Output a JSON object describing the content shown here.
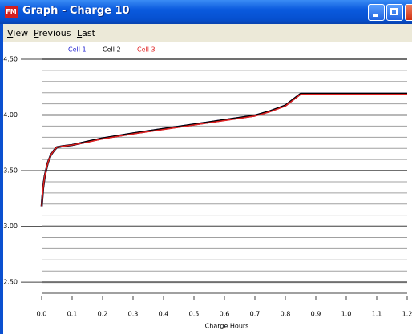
{
  "window": {
    "title": "Graph - Charge 10",
    "icon": "FM"
  },
  "menu": [
    "View",
    "Previous",
    "Last"
  ],
  "chart_data": {
    "type": "line",
    "xlabel": "Charge Hours",
    "x": [
      0,
      0.005,
      0.01,
      0.02,
      0.03,
      0.04,
      0.05,
      0.07,
      0.1,
      0.15,
      0.2,
      0.3,
      0.4,
      0.5,
      0.6,
      0.7,
      0.75,
      0.8,
      0.85,
      0.9,
      1.0,
      1.1,
      1.2
    ],
    "series": [
      {
        "name": "Cell 1",
        "color": "#2020d0",
        "values": [
          3.18,
          3.35,
          3.45,
          3.57,
          3.64,
          3.68,
          3.71,
          3.72,
          3.73,
          3.76,
          3.79,
          3.835,
          3.875,
          3.915,
          3.955,
          3.995,
          4.035,
          4.085,
          4.19,
          4.19,
          4.19,
          4.19,
          4.19
        ]
      },
      {
        "name": "Cell 2",
        "color": "#000000",
        "values": [
          3.18,
          3.35,
          3.45,
          3.57,
          3.64,
          3.68,
          3.71,
          3.72,
          3.73,
          3.76,
          3.79,
          3.835,
          3.875,
          3.915,
          3.955,
          3.995,
          4.035,
          4.085,
          4.19,
          4.19,
          4.19,
          4.19,
          4.19
        ]
      },
      {
        "name": "Cell 3",
        "color": "#e02020",
        "values": [
          3.18,
          3.35,
          3.45,
          3.57,
          3.64,
          3.68,
          3.71,
          3.72,
          3.73,
          3.755,
          3.785,
          3.83,
          3.87,
          3.91,
          3.95,
          3.99,
          4.03,
          4.08,
          4.185,
          4.185,
          4.185,
          4.185,
          4.185
        ]
      }
    ],
    "xlim": [
      0,
      1.2
    ],
    "ylim": [
      2.4,
      4.5
    ],
    "xticks": [
      {
        "value": 0,
        "label": "0.0"
      },
      0.1,
      0.2,
      0.3,
      0.4,
      0.5,
      0.6,
      0.7,
      0.8,
      0.9,
      {
        "value": 1,
        "label": "1.0"
      },
      1.1,
      1.2
    ],
    "yticks": [
      {
        "value": 2.5,
        "label": "2.50"
      },
      {
        "value": 3,
        "label": "3.00"
      },
      {
        "value": 3.5,
        "label": "3.50"
      },
      {
        "value": 4,
        "label": "4.00"
      },
      {
        "value": 4.5,
        "label": "4.50"
      }
    ],
    "yminor": [
      2.6,
      2.7,
      2.8,
      2.9,
      3.1,
      3.2,
      3.3,
      3.4,
      3.6,
      3.7,
      3.8,
      3.9,
      4.1,
      4.2,
      4.3,
      4.4
    ],
    "grid": true
  }
}
